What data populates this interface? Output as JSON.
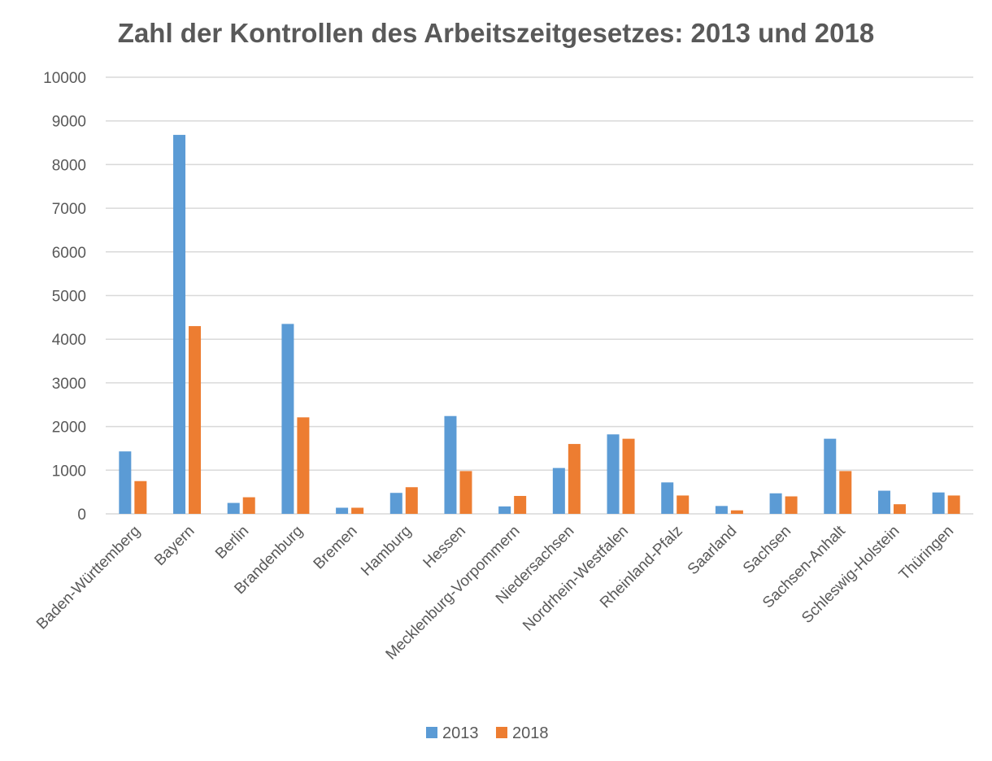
{
  "chart_data": {
    "type": "bar",
    "title": "Zahl der Kontrollen des Arbeitszeitgesetzes: 2013 und 2018",
    "xlabel": "",
    "ylabel": "",
    "ylim": [
      0,
      10000
    ],
    "yticks": [
      "0",
      "1000",
      "2000",
      "3000",
      "4000",
      "5000",
      "6000",
      "7000",
      "8000",
      "9000",
      "10000"
    ],
    "grid": true,
    "legend_position": "bottom",
    "categories": [
      "Baden-Württemberg",
      "Bayern",
      "Berlin",
      "Brandenburg",
      "Bremen",
      "Hamburg",
      "Hessen",
      "Mecklenburg-Vorpommern",
      "Niedersachsen",
      "Nordrhein-Westfalen",
      "Rheinland-Pfalz",
      "Saarland",
      "Sachsen",
      "Sachsen-Anhalt",
      "Schleswig-Holstein",
      "Thüringen"
    ],
    "series": [
      {
        "name": "2013",
        "color": "#5b9bd5",
        "values": [
          1430,
          8680,
          250,
          4350,
          140,
          480,
          2240,
          170,
          1050,
          1820,
          720,
          180,
          470,
          1720,
          530,
          490
        ]
      },
      {
        "name": "2018",
        "color": "#ed7d31",
        "values": [
          750,
          4300,
          380,
          2210,
          140,
          610,
          980,
          410,
          1600,
          1720,
          420,
          80,
          400,
          980,
          220,
          420
        ]
      }
    ]
  }
}
